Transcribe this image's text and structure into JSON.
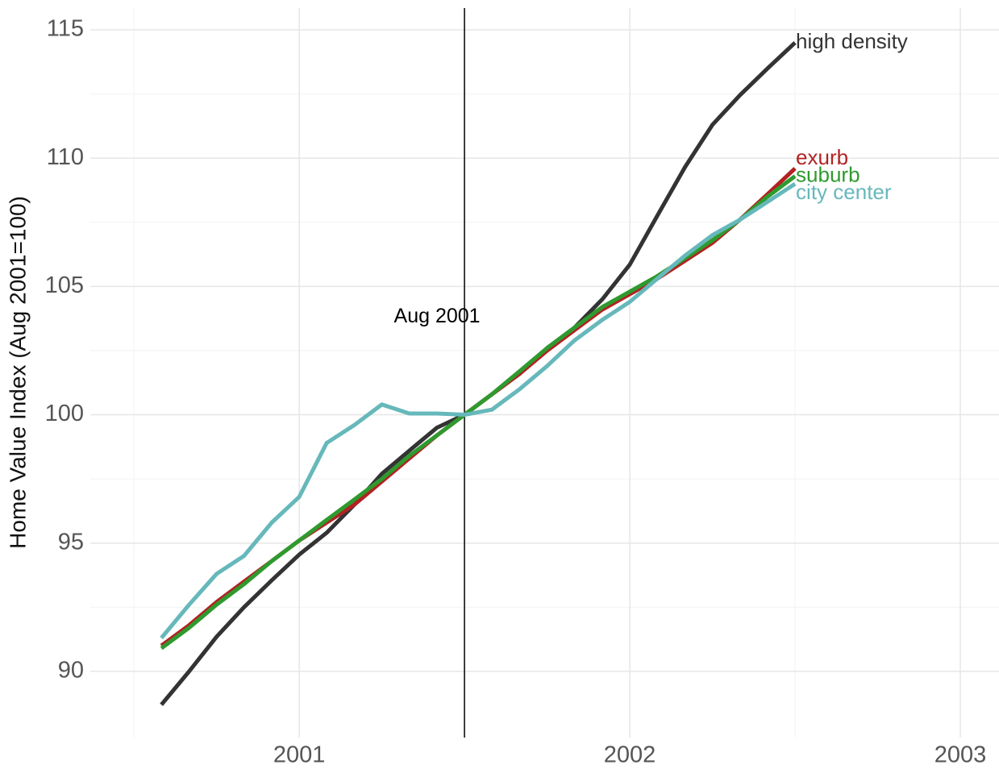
{
  "chart_data": {
    "type": "line",
    "y_label": "Home Value Index (Aug 2001=100)",
    "x": [
      2000.583,
      2000.667,
      2000.75,
      2000.833,
      2000.917,
      2001,
      2001.083,
      2001.167,
      2001.25,
      2001.333,
      2001.417,
      2001.5,
      2001.583,
      2001.667,
      2001.75,
      2001.833,
      2001.917,
      2002,
      2002.083,
      2002.167,
      2002.25,
      2002.333,
      2002.417,
      2002.5
    ],
    "series": [
      {
        "name": "high density",
        "color": "#333333",
        "values": [
          88.7,
          90.0,
          91.35,
          92.5,
          93.55,
          94.55,
          95.4,
          96.5,
          97.7,
          98.6,
          99.5,
          100,
          100.8,
          101.6,
          102.6,
          103.4,
          104.5,
          105.85,
          107.75,
          109.65,
          111.3,
          112.45,
          113.5,
          114.5
        ]
      },
      {
        "name": "exurb",
        "color": "#b22222",
        "values": [
          91.0,
          91.8,
          92.7,
          93.5,
          94.3,
          95.1,
          95.8,
          96.5,
          97.4,
          98.3,
          99.2,
          100,
          100.8,
          101.6,
          102.5,
          103.3,
          104.1,
          104.7,
          105.3,
          106.0,
          106.7,
          107.6,
          108.6,
          109.6
        ]
      },
      {
        "name": "suburb",
        "color": "#2e9a2e",
        "values": [
          90.9,
          91.7,
          92.6,
          93.4,
          94.3,
          95.1,
          95.9,
          96.7,
          97.5,
          98.4,
          99.2,
          100,
          100.8,
          101.7,
          102.6,
          103.4,
          104.2,
          104.8,
          105.4,
          106.1,
          106.8,
          107.6,
          108.5,
          109.3
        ]
      },
      {
        "name": "city center",
        "color": "#66b8bb",
        "values": [
          91.3,
          92.6,
          93.8,
          94.5,
          95.8,
          96.8,
          98.9,
          99.6,
          100.4,
          100.05,
          100.05,
          100,
          100.2,
          101.0,
          101.9,
          102.9,
          103.7,
          104.4,
          105.3,
          106.2,
          107.0,
          107.6,
          108.3,
          109.0
        ]
      }
    ],
    "xlim": [
      2000.368,
      2003.117
    ],
    "xticks": [
      2001,
      2002,
      2003
    ],
    "xminorticks": [
      2000.5,
      2001.5,
      2002.5
    ],
    "ylim": [
      87.42,
      115.85
    ],
    "yticks": [
      90,
      95,
      100,
      105,
      110,
      115
    ],
    "yminorticks": [
      92.5,
      97.5,
      102.5,
      107.5,
      112.5
    ],
    "grid": true,
    "vline": {
      "x": 2001.5,
      "label": "Aug 2001",
      "label_y": 103.8
    }
  }
}
